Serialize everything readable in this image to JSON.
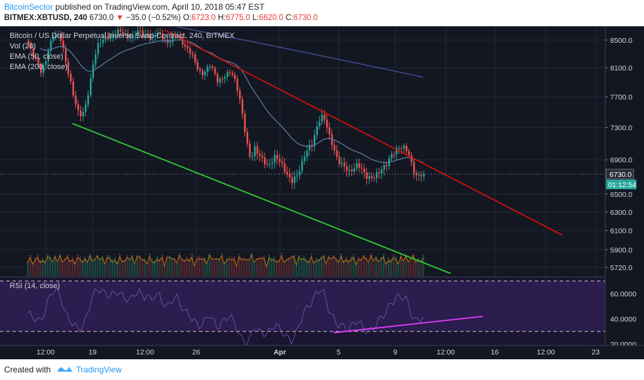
{
  "header": {
    "author": "BitcoinSector",
    "published": "published on TradingView.com, April 10, 2018 05:47 EST",
    "symbol": "BITMEX:XBTUSD, 240",
    "last": "6730.0",
    "change_arrow": "▼",
    "change": "−35.0 (−0.52%)",
    "o_label": "O:",
    "o_val": "6723.0",
    "h_label": "H:",
    "h_val": "6775.0",
    "l_label": "L:",
    "l_val": "6620.0",
    "c_label": "C:",
    "c_val": "6730.0"
  },
  "legend": {
    "title": "Bitcoin / US Dollar Perpetual Inverse Swap Contract, 240, BITMEX",
    "vol": "Vol (20)",
    "ema50": "EMA (50, close)",
    "ema200": "EMA (200, close)",
    "rsi": "RSI (14, close)"
  },
  "price_axis": [
    "8500.0",
    "8100.0",
    "7700.0",
    "7300.0",
    "6900.0",
    "6500.0",
    "6300.0",
    "6100.0",
    "5900.0",
    "5720.0"
  ],
  "last_price_tag": "6730.0",
  "countdown_tag": "01:12:54",
  "rsi_axis": [
    "60.0000",
    "40.0000",
    "20.0000"
  ],
  "time_axis": [
    "12:00",
    "19",
    "12:00",
    "26",
    "Apr",
    "5",
    "9",
    "12:00",
    "16",
    "12:00",
    "23"
  ],
  "footer": {
    "created": "Created with",
    "brand": "TradingView"
  },
  "colors": {
    "background": "#131722",
    "bull": "#26a69a",
    "bear": "#ef5350",
    "ema50": "#5b7fa8",
    "ema200": "#4a56a6",
    "support": "#33cc33",
    "resistance": "#cc1111",
    "rsi_line": "#7e57c2",
    "rsi_divergence": "#e040fb",
    "volume_ma": "#ff9800"
  },
  "chart_data": {
    "type": "candlestick",
    "title": "Bitcoin / US Dollar Perpetual Inverse Swap Contract, 240, BITMEX",
    "timeframe": "240",
    "y_scale": "log",
    "ylim": [
      5650,
      8700
    ],
    "x_labels": [
      "12:00",
      "19",
      "12:00",
      "26",
      "Apr",
      "5",
      "9",
      "12:00",
      "16",
      "12:00",
      "23"
    ],
    "last_ohlc": {
      "open": 6723.0,
      "high": 6775.0,
      "low": 6620.0,
      "close": 6730.0
    },
    "closes": [
      8450,
      8300,
      8200,
      8050,
      8150,
      8400,
      8550,
      8600,
      8500,
      8200,
      7950,
      7700,
      7500,
      7450,
      7600,
      7900,
      8250,
      8450,
      8500,
      8550,
      8520,
      8600,
      8650,
      8600,
      8550,
      8520,
      8600,
      8650,
      8550,
      8600,
      8500,
      8620,
      8580,
      8500,
      8450,
      8550,
      8600,
      8500,
      8400,
      8350,
      8250,
      8100,
      8000,
      8050,
      8150,
      8050,
      7900,
      7950,
      8000,
      8050,
      7950,
      7750,
      7450,
      7100,
      6900,
      7050,
      6950,
      6900,
      6820,
      6870,
      6950,
      6880,
      6800,
      6700,
      6650,
      6700,
      6800,
      6950,
      7050,
      7100,
      7300,
      7450,
      7400,
      7200,
      7050,
      6900,
      6850,
      6800,
      6750,
      6800,
      6850,
      6780,
      6700,
      6680,
      6700,
      6750,
      6800,
      6850,
      6950,
      7000,
      7050,
      7050,
      7020,
      6850,
      6700,
      6720,
      6730
    ],
    "volume_ma_label": "Vol (20)",
    "trendlines": [
      {
        "name": "support",
        "color": "#33cc33",
        "from": {
          "bar": 18,
          "price": 7350
        },
        "to": {
          "bar": 170,
          "price": 5660
        }
      },
      {
        "name": "resistance",
        "color": "#cc1111",
        "from": {
          "bar": 55,
          "price": 8650
        },
        "to": {
          "bar": 215,
          "price": 6050
        }
      }
    ],
    "rsi": {
      "label": "RSI (14, close)",
      "ylim": [
        18,
        72
      ],
      "bands": [
        30,
        70
      ],
      "values": [
        45,
        42,
        40,
        38,
        44,
        55,
        62,
        63,
        58,
        46,
        40,
        36,
        33,
        32,
        38,
        50,
        60,
        64,
        62,
        60,
        58,
        60,
        62,
        58,
        56,
        55,
        60,
        62,
        57,
        59,
        54,
        60,
        58,
        52,
        49,
        55,
        58,
        52,
        46,
        44,
        40,
        36,
        34,
        38,
        44,
        39,
        33,
        36,
        40,
        43,
        38,
        30,
        24,
        21,
        24,
        34,
        30,
        29,
        28,
        31,
        36,
        33,
        29,
        25,
        23,
        27,
        36,
        45,
        50,
        53,
        60,
        64,
        60,
        48,
        42,
        36,
        35,
        33,
        32,
        36,
        39,
        35,
        31,
        30,
        33,
        38,
        42,
        45,
        52,
        55,
        58,
        57,
        56,
        45,
        38,
        40,
        41
      ],
      "divergence_line": {
        "from": {
          "bar": 123,
          "value": 29
        },
        "to": {
          "bar": 183,
          "value": 42
        }
      }
    }
  }
}
